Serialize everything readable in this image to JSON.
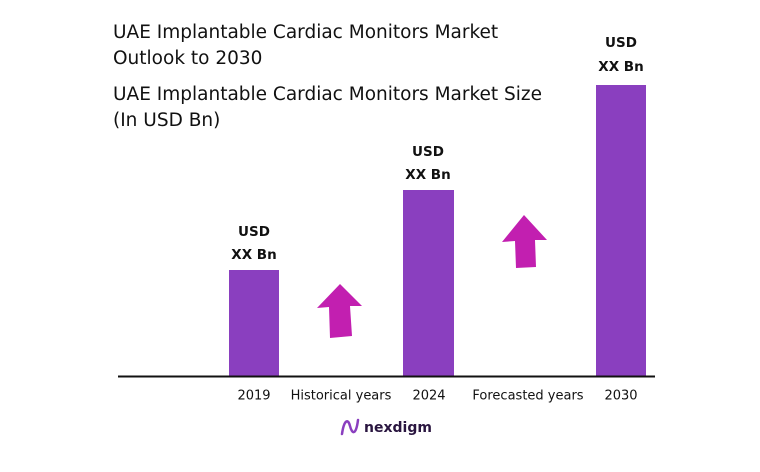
{
  "header": {
    "title": [
      "UAE Implantable Cardiac Monitors Market",
      "Outlook to 2030"
    ],
    "subtitle": [
      "UAE Implantable Cardiac Monitors Market Size",
      "(In USD Bn)"
    ]
  },
  "bars": [
    {
      "year": "2019",
      "label": [
        "USD",
        "XX Bn"
      ]
    },
    {
      "year": "2024",
      "label": [
        "USD",
        "XX Bn"
      ]
    },
    {
      "year": "2030",
      "label": [
        "USD",
        "XX Bn"
      ]
    }
  ],
  "periods": [
    "Historical years",
    "Forecasted years"
  ],
  "logo": "nexdigm"
}
